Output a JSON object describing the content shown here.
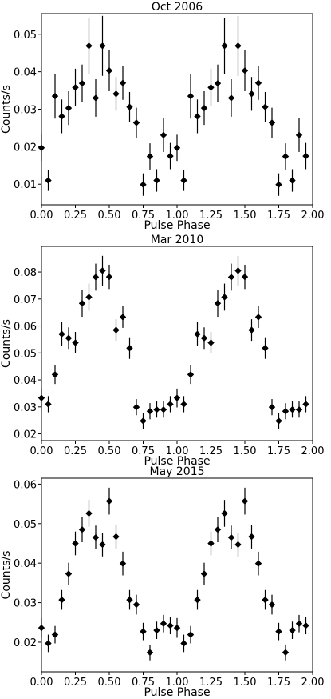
{
  "chart_data": [
    {
      "type": "scatter",
      "title": "Oct 2006",
      "xlabel": "Pulse Phase",
      "ylabel": "Counts/s",
      "xlim": [
        0,
        2
      ],
      "ylim": [
        0.0045,
        0.0555
      ],
      "xticks": [
        "0.00",
        "0.25",
        "0.50",
        "0.75",
        "1.00",
        "1.25",
        "1.50",
        "1.75",
        "2.00"
      ],
      "yticks": [
        "0.01",
        "0.02",
        "0.03",
        "0.04",
        "0.05"
      ],
      "x": [
        0.0,
        0.05,
        0.1,
        0.15,
        0.2,
        0.25,
        0.3,
        0.35,
        0.4,
        0.45,
        0.5,
        0.55,
        0.6,
        0.65,
        0.7,
        0.75,
        0.8,
        0.85,
        0.9,
        0.95,
        1.0,
        1.05,
        1.1,
        1.15,
        1.2,
        1.25,
        1.3,
        1.35,
        1.4,
        1.45,
        1.5,
        1.55,
        1.6,
        1.65,
        1.7,
        1.75,
        1.8,
        1.85,
        1.9,
        1.95
      ],
      "y": [
        0.0197,
        0.011,
        0.0335,
        0.0281,
        0.0303,
        0.0358,
        0.0369,
        0.0469,
        0.033,
        0.0469,
        0.0403,
        0.0341,
        0.037,
        0.0306,
        0.0264,
        0.0099,
        0.0174,
        0.011,
        0.0231,
        0.0175,
        0.0197,
        0.011,
        0.0335,
        0.0281,
        0.0303,
        0.0358,
        0.0369,
        0.0469,
        0.033,
        0.0469,
        0.0403,
        0.0341,
        0.037,
        0.0306,
        0.0264,
        0.0099,
        0.0174,
        0.011,
        0.0231,
        0.0175
      ],
      "yerr": [
        0.0035,
        0.0028,
        0.006,
        0.0045,
        0.0045,
        0.005,
        0.005,
        0.0075,
        0.005,
        0.008,
        0.0055,
        0.0045,
        0.0045,
        0.004,
        0.004,
        0.003,
        0.0035,
        0.003,
        0.0045,
        0.0035,
        0.0035,
        0.0028,
        0.006,
        0.0045,
        0.0045,
        0.005,
        0.005,
        0.0075,
        0.005,
        0.008,
        0.0055,
        0.0045,
        0.0045,
        0.004,
        0.004,
        0.003,
        0.0035,
        0.003,
        0.0045,
        0.0035
      ]
    },
    {
      "type": "scatter",
      "title": "Mar 2010",
      "xlabel": "Pulse Phase",
      "ylabel": "Counts/s",
      "xlim": [
        0,
        2
      ],
      "ylim": [
        0.0175,
        0.0895
      ],
      "xticks": [
        "0.00",
        "0.25",
        "0.50",
        "0.75",
        "1.00",
        "1.25",
        "1.50",
        "1.75",
        "2.00"
      ],
      "yticks": [
        "0.02",
        "0.03",
        "0.04",
        "0.05",
        "0.06",
        "0.07",
        "0.08"
      ],
      "x": [
        0.0,
        0.05,
        0.1,
        0.15,
        0.2,
        0.25,
        0.3,
        0.35,
        0.4,
        0.45,
        0.5,
        0.55,
        0.6,
        0.65,
        0.7,
        0.75,
        0.8,
        0.85,
        0.9,
        0.95,
        1.0,
        1.05,
        1.1,
        1.15,
        1.2,
        1.25,
        1.3,
        1.35,
        1.4,
        1.45,
        1.5,
        1.55,
        1.6,
        1.65,
        1.7,
        1.75,
        1.8,
        1.85,
        1.9,
        1.95
      ],
      "y": [
        0.0333,
        0.031,
        0.042,
        0.057,
        0.0555,
        0.0538,
        0.0684,
        0.0707,
        0.0781,
        0.0805,
        0.0782,
        0.0585,
        0.0633,
        0.0518,
        0.0299,
        0.0248,
        0.0284,
        0.029,
        0.029,
        0.031,
        0.0333,
        0.031,
        0.042,
        0.057,
        0.0555,
        0.0538,
        0.0684,
        0.0707,
        0.0781,
        0.0805,
        0.0782,
        0.0585,
        0.0633,
        0.0518,
        0.0299,
        0.0248,
        0.0284,
        0.029,
        0.029,
        0.031
      ],
      "yerr": [
        0.0035,
        0.003,
        0.0035,
        0.0045,
        0.004,
        0.004,
        0.005,
        0.005,
        0.005,
        0.0055,
        0.0045,
        0.004,
        0.004,
        0.004,
        0.003,
        0.003,
        0.003,
        0.003,
        0.003,
        0.003,
        0.0035,
        0.003,
        0.0035,
        0.0045,
        0.004,
        0.004,
        0.005,
        0.005,
        0.005,
        0.0055,
        0.0045,
        0.004,
        0.004,
        0.004,
        0.003,
        0.003,
        0.003,
        0.003,
        0.003,
        0.003
      ]
    },
    {
      "type": "scatter",
      "title": "May 2015",
      "xlabel": "Pulse Phase",
      "ylabel": "Counts/s",
      "xlim": [
        0,
        2
      ],
      "ylim": [
        0.0125,
        0.0615
      ],
      "xticks": [
        "0.00",
        "0.25",
        "0.50",
        "0.75",
        "1.00",
        "1.25",
        "1.50",
        "1.75",
        "2.00"
      ],
      "yticks": [
        "0.02",
        "0.03",
        "0.04",
        "0.05",
        "0.06"
      ],
      "x": [
        0.0,
        0.05,
        0.1,
        0.15,
        0.2,
        0.25,
        0.3,
        0.35,
        0.4,
        0.45,
        0.5,
        0.55,
        0.6,
        0.65,
        0.7,
        0.75,
        0.8,
        0.85,
        0.9,
        0.95,
        1.0,
        1.05,
        1.1,
        1.15,
        1.2,
        1.25,
        1.3,
        1.35,
        1.4,
        1.45,
        1.5,
        1.55,
        1.6,
        1.65,
        1.7,
        1.75,
        1.8,
        1.85,
        1.9,
        1.95
      ],
      "y": [
        0.0236,
        0.0197,
        0.0219,
        0.0307,
        0.0373,
        0.045,
        0.0485,
        0.0526,
        0.0465,
        0.0447,
        0.0557,
        0.0467,
        0.0399,
        0.0307,
        0.0295,
        0.0227,
        0.0174,
        0.023,
        0.0247,
        0.0242,
        0.0236,
        0.0197,
        0.0219,
        0.0307,
        0.0373,
        0.045,
        0.0485,
        0.0526,
        0.0465,
        0.0447,
        0.0557,
        0.0467,
        0.0399,
        0.0307,
        0.0295,
        0.0227,
        0.0174,
        0.023,
        0.0247,
        0.0242
      ],
      "yerr": [
        0.0025,
        0.0022,
        0.0022,
        0.0025,
        0.0028,
        0.003,
        0.0032,
        0.0034,
        0.003,
        0.003,
        0.0034,
        0.003,
        0.003,
        0.0025,
        0.0025,
        0.0022,
        0.002,
        0.0022,
        0.0022,
        0.0022,
        0.0025,
        0.0022,
        0.0022,
        0.0025,
        0.0028,
        0.003,
        0.0032,
        0.0034,
        0.003,
        0.003,
        0.0034,
        0.003,
        0.003,
        0.0025,
        0.0025,
        0.0022,
        0.002,
        0.0022,
        0.0022,
        0.0022
      ]
    }
  ]
}
